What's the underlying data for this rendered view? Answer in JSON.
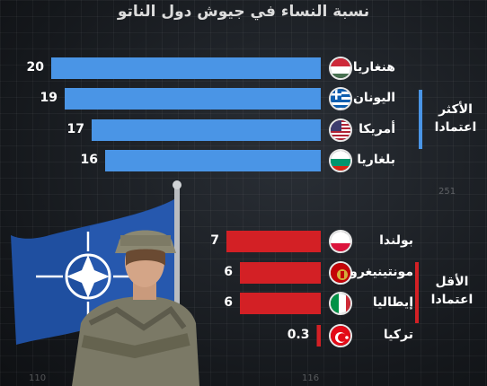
{
  "title": "نسبة النساء في جيوش دول الناتو",
  "background_numbers": [
    "251",
    "110",
    "116"
  ],
  "groups": {
    "top": {
      "label_line1": "الأكثر",
      "label_line2": "اعتمادا",
      "color": "#4a95e6"
    },
    "bottom": {
      "label_line1": "الأقل",
      "label_line2": "اعتمادا",
      "color": "#d32025"
    }
  },
  "chart_data": {
    "type": "bar",
    "orientation": "horizontal",
    "title": "نسبة النساء في جيوش دول الناتو",
    "xlim": [
      0,
      20
    ],
    "categories": [
      "هنغاريا",
      "اليونان",
      "أمريكا",
      "بلغاريا",
      "بولندا",
      "مونتينيغرو",
      "إيطاليا",
      "تركيا"
    ],
    "values": [
      20,
      19,
      17,
      16,
      7,
      6,
      6,
      0.3
    ],
    "value_labels": [
      "20",
      "19",
      "17",
      "16",
      "7",
      "6",
      "6",
      "0.3"
    ],
    "group": [
      "top",
      "top",
      "top",
      "top",
      "bottom",
      "bottom",
      "bottom",
      "bottom"
    ],
    "flag_icons": [
      "hungary-flag-icon",
      "greece-flag-icon",
      "usa-flag-icon",
      "bulgaria-flag-icon",
      "poland-flag-icon",
      "montenegro-flag-icon",
      "italy-flag-icon",
      "turkey-flag-icon"
    ],
    "colors": {
      "top": "#4a95e6",
      "bottom": "#d32025"
    }
  }
}
